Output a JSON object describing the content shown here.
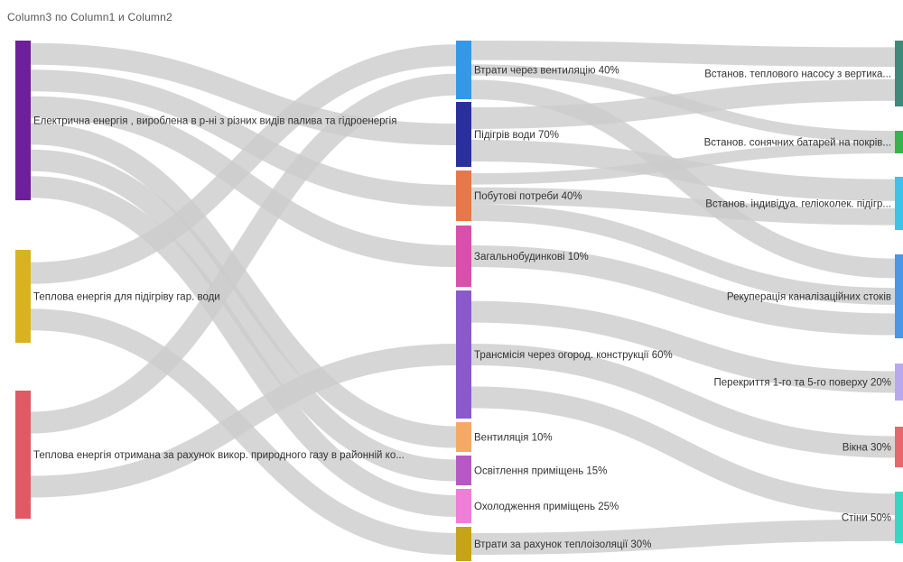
{
  "title": "Column3 по Column1 и Column2",
  "chart_data": {
    "type": "sankey",
    "title": "Column3 по Column1 и Column2",
    "link_color": "#cccccc",
    "nodes": {
      "sources": [
        {
          "id": "s1",
          "label": "Електрична енергія , вироблена в р-ні з різних видів палива та гідроенергія",
          "color": "#6e1f9a"
        },
        {
          "id": "s2",
          "label": "Теплова енергія для підігріву гар. води",
          "color": "#d9b31f"
        },
        {
          "id": "s3",
          "label": "Теплова енергія отримана за рахунок викор. природного газу в районній ко...",
          "color": "#e05a63"
        }
      ],
      "middle": [
        {
          "id": "m1",
          "label": "Втрати через вентиляцію 40%",
          "color": "#3399e6"
        },
        {
          "id": "m2",
          "label": "Підігрів води 70%",
          "color": "#2b2f9e"
        },
        {
          "id": "m3",
          "label": "Побутові потреби 40%",
          "color": "#e8774a"
        },
        {
          "id": "m4",
          "label": "Загальнобудинкові 10%",
          "color": "#d94fab"
        },
        {
          "id": "m5",
          "label": "Трансмісія через огород. конструкції 60%",
          "color": "#8a5acc"
        },
        {
          "id": "m6",
          "label": "Вентиляція 10%",
          "color": "#f5a964"
        },
        {
          "id": "m7",
          "label": "Освітлення приміщень 15%",
          "color": "#b659c4"
        },
        {
          "id": "m8",
          "label": "Охолодження приміщень 25%",
          "color": "#ee7ed7"
        },
        {
          "id": "m9",
          "label": "Втрати за рахунок теплоізоляції 30%",
          "color": "#c6a318"
        }
      ],
      "targets": [
        {
          "id": "t1",
          "label": "Встанов. теплового насосу з вертика...",
          "color": "#3d8a7a"
        },
        {
          "id": "t2",
          "label": "Встанов. сонячних батарей на покрів...",
          "color": "#36b34a"
        },
        {
          "id": "t3",
          "label": "Встанов. індивідуа. геліоколек. підігр...",
          "color": "#3cc3ea"
        },
        {
          "id": "t4",
          "label": "Рекуперація каналізаційних стоків",
          "color": "#4a96e8"
        },
        {
          "id": "t5",
          "label": "Перекриття 1-го та 5-го поверху 20%",
          "color": "#b8a8ee"
        },
        {
          "id": "t6",
          "label": "Вікна 30%",
          "color": "#e8676c"
        },
        {
          "id": "t7",
          "label": "Стіни 50%",
          "color": "#3ad4c4"
        }
      ]
    },
    "links": [
      {
        "source": "s1",
        "target": "m2"
      },
      {
        "source": "s1",
        "target": "m3"
      },
      {
        "source": "s1",
        "target": "m4"
      },
      {
        "source": "s1",
        "target": "m6"
      },
      {
        "source": "s1",
        "target": "m7"
      },
      {
        "source": "s1",
        "target": "m8"
      },
      {
        "source": "s2",
        "target": "m1"
      },
      {
        "source": "s2",
        "target": "m9"
      },
      {
        "source": "s3",
        "target": "m1"
      },
      {
        "source": "s3",
        "target": "m5"
      },
      {
        "source": "m1",
        "target": "t1"
      },
      {
        "source": "m1",
        "target": "t2"
      },
      {
        "source": "m1",
        "target": "t4"
      },
      {
        "source": "m2",
        "target": "t1"
      },
      {
        "source": "m2",
        "target": "t3"
      },
      {
        "source": "m3",
        "target": "t2"
      },
      {
        "source": "m3",
        "target": "t3"
      },
      {
        "source": "m3",
        "target": "t4"
      },
      {
        "source": "m4",
        "target": "t4"
      },
      {
        "source": "m5",
        "target": "t5"
      },
      {
        "source": "m5",
        "target": "t6"
      },
      {
        "source": "m5",
        "target": "t7"
      },
      {
        "source": "m9",
        "target": "t7"
      }
    ]
  }
}
